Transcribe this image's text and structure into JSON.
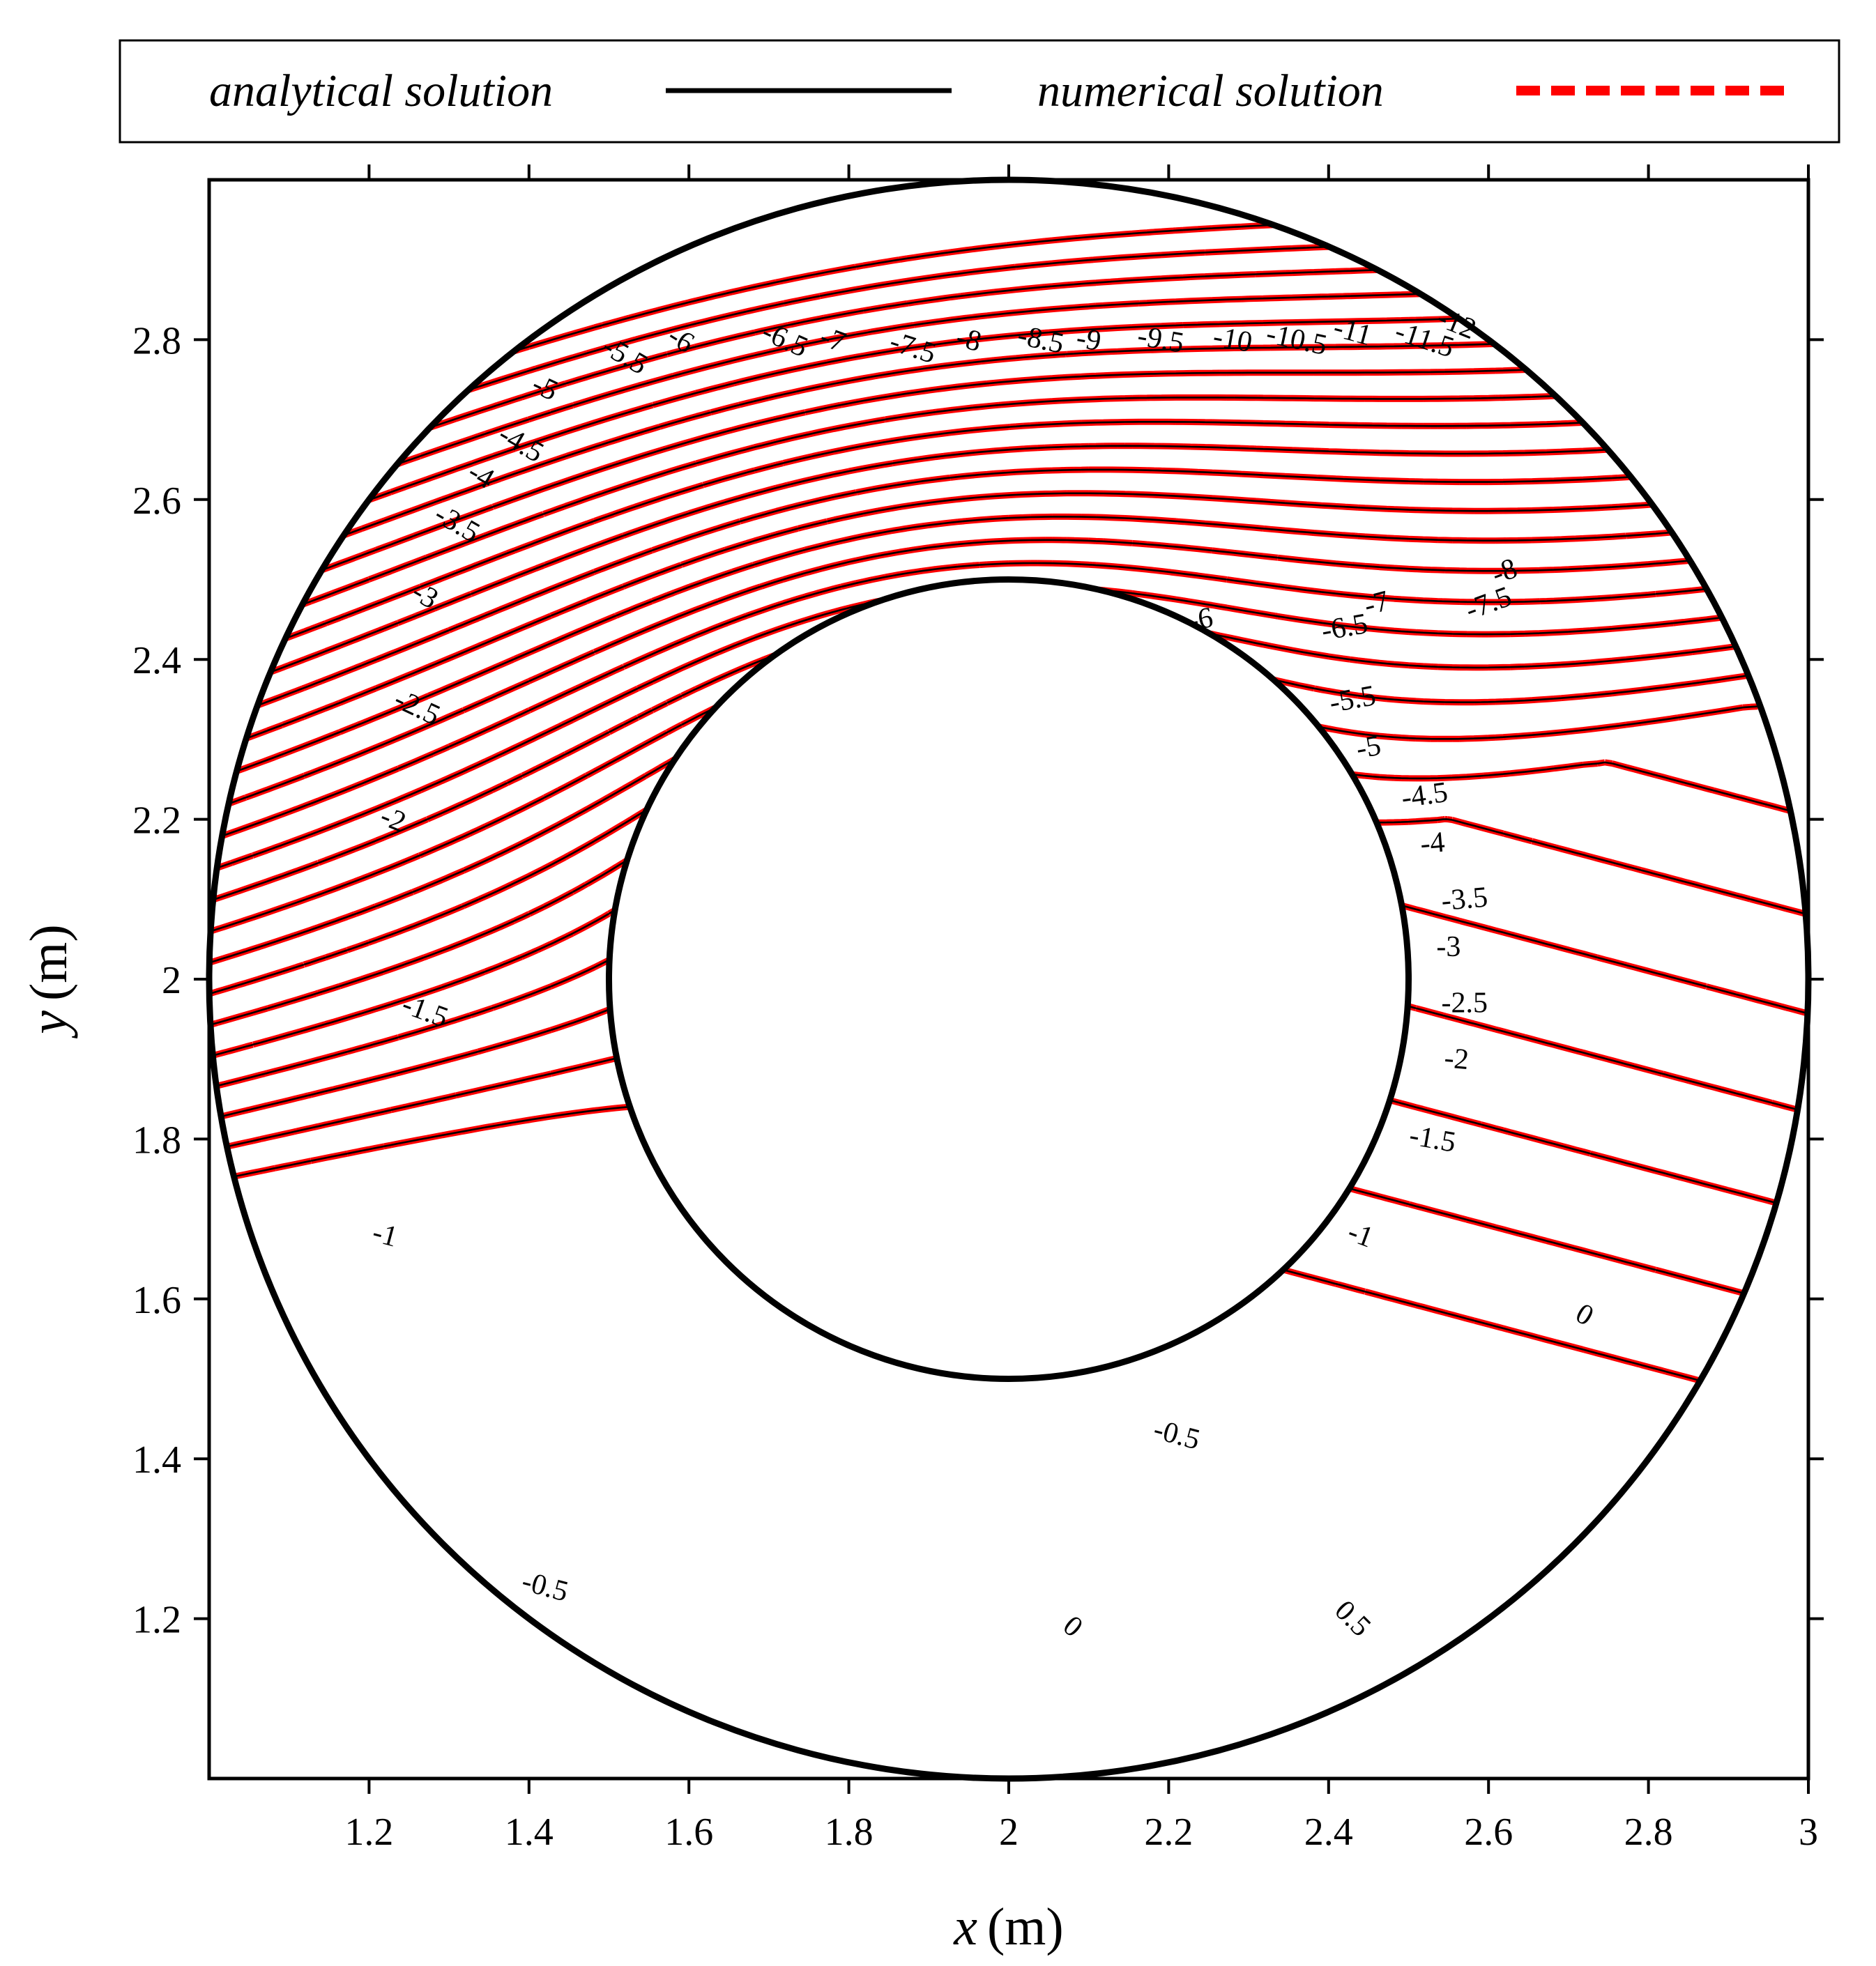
{
  "chart_data": {
    "type": "contour",
    "title": "",
    "xlabel_var": "x",
    "xlabel_unit": "(m)",
    "ylabel_var": "y",
    "ylabel_unit": "(m)",
    "xlim": [
      1.0,
      3.0
    ],
    "ylim": [
      1.0,
      3.0
    ],
    "xticks": [
      "1.2",
      "1.4",
      "1.6",
      "1.8",
      "2",
      "2.2",
      "2.4",
      "2.6",
      "2.8",
      "3"
    ],
    "yticks": [
      "1.2",
      "1.4",
      "1.6",
      "1.8",
      "2",
      "2.2",
      "2.4",
      "2.6",
      "2.8"
    ],
    "xtick_values": [
      1.2,
      1.4,
      1.6,
      1.8,
      2.0,
      2.2,
      2.4,
      2.6,
      2.8,
      3.0
    ],
    "ytick_values": [
      1.2,
      1.4,
      1.6,
      1.8,
      2.0,
      2.2,
      2.4,
      2.6,
      2.8
    ],
    "domain": {
      "center": [
        2.0,
        2.0
      ],
      "outer_radius": 1.0,
      "inner_radius": 0.5
    },
    "legend": {
      "position": "top",
      "entries": [
        {
          "label": "analytical solution",
          "style": "solid",
          "color": "#000000"
        },
        {
          "label": "numerical solution",
          "style": "dashed",
          "color": "#ff0000"
        }
      ]
    },
    "contour_levels_note": "levels every 0.5 from -12 to 0.5",
    "contour_labels": [
      {
        "text": "-5",
        "x": 1.42,
        "y": 2.74,
        "angle": 25
      },
      {
        "text": "-5.5",
        "x": 1.52,
        "y": 2.78,
        "angle": 30
      },
      {
        "text": "-6",
        "x": 1.59,
        "y": 2.8,
        "angle": 32
      },
      {
        "text": "-6.5",
        "x": 1.72,
        "y": 2.8,
        "angle": 24
      },
      {
        "text": "-7",
        "x": 1.78,
        "y": 2.8,
        "angle": 20
      },
      {
        "text": "-7.5",
        "x": 1.88,
        "y": 2.79,
        "angle": 18
      },
      {
        "text": "-8",
        "x": 1.95,
        "y": 2.8,
        "angle": 15
      },
      {
        "text": "-8.5",
        "x": 2.04,
        "y": 2.8,
        "angle": 12
      },
      {
        "text": "-9",
        "x": 2.1,
        "y": 2.8,
        "angle": 10
      },
      {
        "text": "-9.5",
        "x": 2.19,
        "y": 2.8,
        "angle": 10
      },
      {
        "text": "-10",
        "x": 2.28,
        "y": 2.8,
        "angle": 10
      },
      {
        "text": "-10.5",
        "x": 2.36,
        "y": 2.8,
        "angle": 12
      },
      {
        "text": "-11",
        "x": 2.43,
        "y": 2.81,
        "angle": 15
      },
      {
        "text": "-11.5",
        "x": 2.52,
        "y": 2.8,
        "angle": 18
      },
      {
        "text": "-12",
        "x": 2.56,
        "y": 2.82,
        "angle": 22
      },
      {
        "text": "-4.5",
        "x": 1.39,
        "y": 2.67,
        "angle": 30
      },
      {
        "text": "-4",
        "x": 1.34,
        "y": 2.63,
        "angle": 30
      },
      {
        "text": "-3.5",
        "x": 1.31,
        "y": 2.57,
        "angle": 30
      },
      {
        "text": "-3",
        "x": 1.27,
        "y": 2.48,
        "angle": 30
      },
      {
        "text": "-2.5",
        "x": 1.26,
        "y": 2.34,
        "angle": 25
      },
      {
        "text": "-2",
        "x": 1.23,
        "y": 2.2,
        "angle": 22
      },
      {
        "text": "-1.5",
        "x": 1.27,
        "y": 1.96,
        "angle": 20
      },
      {
        "text": "-1",
        "x": 1.22,
        "y": 1.68,
        "angle": 15
      },
      {
        "text": "-6",
        "x": 2.24,
        "y": 2.45,
        "angle": -10
      },
      {
        "text": "-6.5",
        "x": 2.42,
        "y": 2.44,
        "angle": -10
      },
      {
        "text": "-7",
        "x": 2.46,
        "y": 2.47,
        "angle": -15
      },
      {
        "text": "-7.5",
        "x": 2.6,
        "y": 2.47,
        "angle": -20
      },
      {
        "text": "-8",
        "x": 2.62,
        "y": 2.51,
        "angle": -20
      },
      {
        "text": "-5.5",
        "x": 2.43,
        "y": 2.35,
        "angle": -10
      },
      {
        "text": "-5",
        "x": 2.45,
        "y": 2.29,
        "angle": -10
      },
      {
        "text": "-4.5",
        "x": 2.52,
        "y": 2.23,
        "angle": -8
      },
      {
        "text": "-4",
        "x": 2.53,
        "y": 2.17,
        "angle": -5
      },
      {
        "text": "-3.5",
        "x": 2.57,
        "y": 2.1,
        "angle": -5
      },
      {
        "text": "-3",
        "x": 2.55,
        "y": 2.04,
        "angle": 0
      },
      {
        "text": "-2.5",
        "x": 2.57,
        "y": 1.97,
        "angle": 0
      },
      {
        "text": "-2",
        "x": 2.56,
        "y": 1.9,
        "angle": 5
      },
      {
        "text": "-1.5",
        "x": 2.53,
        "y": 1.8,
        "angle": 10
      },
      {
        "text": "-1",
        "x": 2.44,
        "y": 1.68,
        "angle": 20
      },
      {
        "text": "0",
        "x": 2.72,
        "y": 1.58,
        "angle": 30
      },
      {
        "text": "-0.5",
        "x": 2.21,
        "y": 1.43,
        "angle": 15
      },
      {
        "text": "-0.5",
        "x": 1.42,
        "y": 1.24,
        "angle": 15
      },
      {
        "text": "0",
        "x": 2.08,
        "y": 1.19,
        "angle": 40
      },
      {
        "text": "0.5",
        "x": 2.43,
        "y": 1.2,
        "angle": 45
      }
    ]
  },
  "colors": {
    "analytical": "#000000",
    "numerical": "#ff0000",
    "frame": "#000000"
  }
}
